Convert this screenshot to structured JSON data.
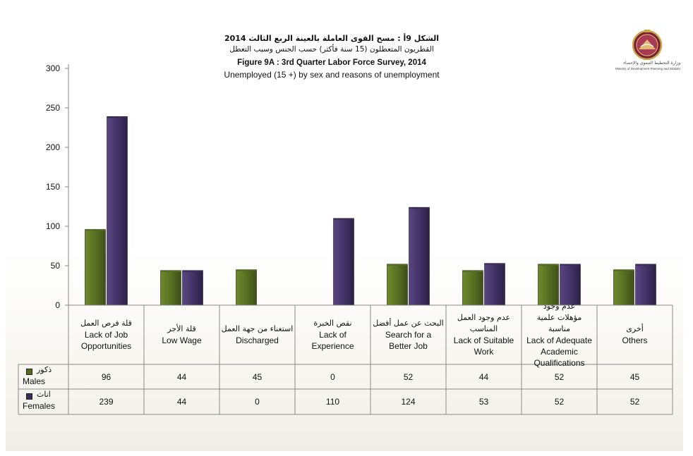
{
  "logo": {
    "label_ar": "وزارة التخطيط التنموي والإحصاء",
    "label_en": "Ministry of Development Planning and Statistics"
  },
  "titles": {
    "title_ar": "الشكل 9أ : مسح القوى العاملة بالعينة الربع الثالث 2014",
    "subtitle_ar": "القطريون المتعطلون (15 سنة فأكثر) حسب الجنس وسبب التعطل",
    "title_en": "Figure 9A : 3rd Quarter Labor Force Survey, 2014",
    "subtitle_en": "Unemployed (15 +) by sex and reasons of unemployment"
  },
  "chart_data": {
    "type": "bar",
    "ylim": [
      0,
      300
    ],
    "yticks": [
      0,
      50,
      100,
      150,
      200,
      250,
      300
    ],
    "grid": false,
    "categories": [
      {
        "ar": "قلة فرص العمل",
        "en": [
          "Lack of Job",
          "Opportunities"
        ]
      },
      {
        "ar": "قلة الأجر",
        "en": [
          "Low Wage"
        ]
      },
      {
        "ar": "استغناء من جهة العمل",
        "en": [
          "Discharged"
        ]
      },
      {
        "ar": "نقص الخبرة",
        "en": [
          "Lack of",
          "Experience"
        ]
      },
      {
        "ar": "البحث عن عمل أفضل",
        "en": [
          "Search for a",
          "Better Job"
        ]
      },
      {
        "ar": "عدم وجود العمل المناسب",
        "en": [
          "Lack of Suitable",
          "Work"
        ]
      },
      {
        "ar": "عدم وجود مؤهلات علمية مناسبة",
        "en": [
          "Lack of Adequate",
          "Academic",
          "Qualifications"
        ]
      },
      {
        "ar": "أخرى",
        "en": [
          "Others"
        ]
      }
    ],
    "series": [
      {
        "name": "Males",
        "name_ar": "ذكور",
        "color": "#556b1f",
        "values": [
          96,
          44,
          45,
          0,
          52,
          44,
          52,
          45
        ]
      },
      {
        "name": "Females",
        "name_ar": "اناث",
        "color": "#3c2c5c",
        "values": [
          239,
          44,
          0,
          110,
          124,
          53,
          52,
          52
        ]
      }
    ],
    "legend": "data-table"
  }
}
